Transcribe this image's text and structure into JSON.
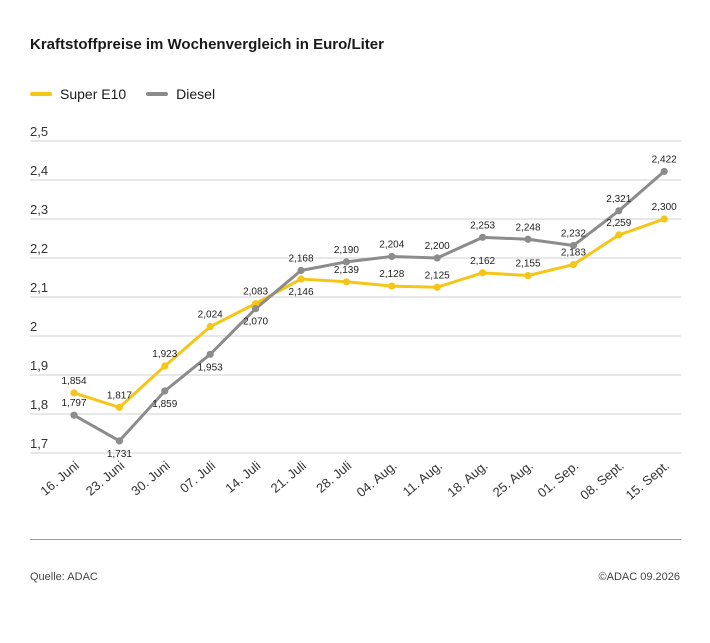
{
  "title": "Kraftstoffpreise im Wochenvergleich in Euro/Liter",
  "source": "Quelle: ADAC",
  "copyright": "©ADAC 09.2026",
  "colors": {
    "super_e10": "#f5c518",
    "diesel": "#8c8c8c",
    "grid": "#d0d0d0"
  },
  "chart_data": {
    "type": "line",
    "title": "Kraftstoffpreise im Wochenvergleich in Euro/Liter",
    "xlabel": "",
    "ylabel": "",
    "categories": [
      "16. Juni",
      "23. Juni",
      "30. Juni",
      "07. Juli",
      "14. Juli",
      "21. Juli",
      "28. Juli",
      "04. Aug.",
      "11. Aug.",
      "18. Aug.",
      "25. Aug.",
      "01. Sep.",
      "08. Sept.",
      "15. Sept."
    ],
    "y_ticks": [
      "1,7",
      "1,8",
      "1,9",
      "2",
      "2,1",
      "2,2",
      "2,3",
      "2,4",
      "2,5"
    ],
    "ylim": [
      1.7,
      2.5
    ],
    "grid": true,
    "legend_position": "top-left",
    "series": [
      {
        "name": "Super E10",
        "values": [
          1.854,
          1.817,
          1.923,
          2.024,
          2.083,
          2.146,
          2.139,
          2.128,
          2.125,
          2.162,
          2.155,
          2.183,
          2.259,
          2.3
        ],
        "labels": [
          "1,854",
          "1,817",
          "1,923",
          "2,024",
          "2,083",
          "2,146",
          "2,139",
          "2,128",
          "2,125",
          "2,162",
          "2,155",
          "2,183",
          "2,259",
          "2,300"
        ]
      },
      {
        "name": "Diesel",
        "values": [
          1.797,
          1.731,
          1.859,
          1.953,
          2.07,
          2.168,
          2.19,
          2.204,
          2.2,
          2.253,
          2.248,
          2.232,
          2.321,
          2.422
        ],
        "labels": [
          "1,797",
          "1,731",
          "1,859",
          "1,953",
          "2,070",
          "2,168",
          "2,190",
          "2,204",
          "2,200",
          "2,253",
          "2,248",
          "2,232",
          "2,321",
          "2,422"
        ]
      }
    ]
  }
}
